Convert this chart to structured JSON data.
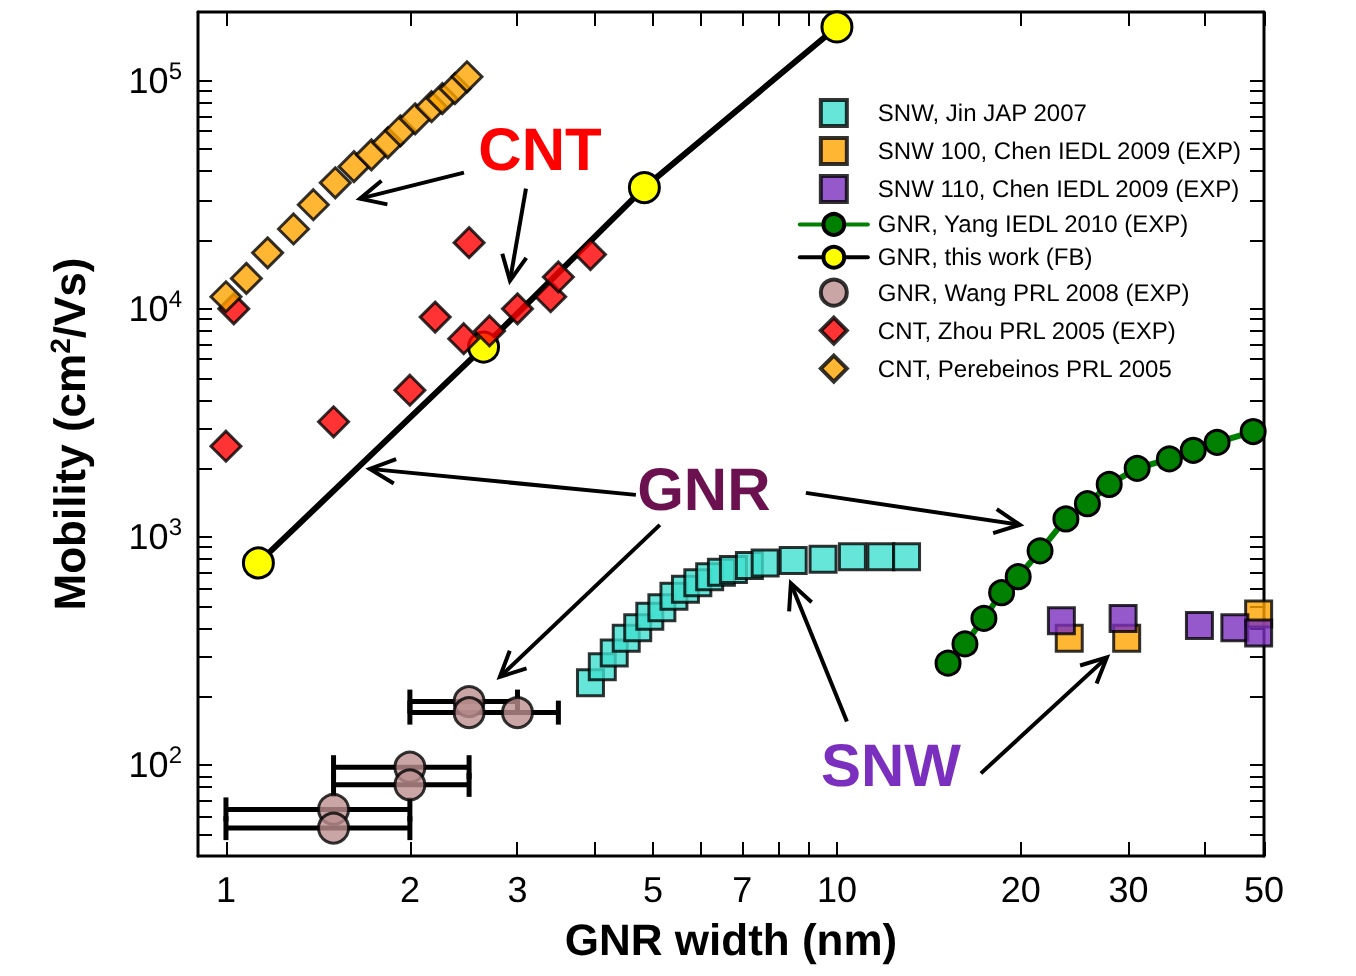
{
  "chart_data": {
    "type": "scatter",
    "xlabel": "GNR width (nm)",
    "ylabel": "Mobility (cm$^{2}$/Vs)",
    "log": "xy",
    "grid": false,
    "legend": "top right",
    "xlim": [
      0.9,
      50
    ],
    "ylim": [
      40,
      200000
    ],
    "xticks": [
      1,
      2,
      3,
      {
        "value": 4,
        "label": null
      },
      5,
      {
        "value": 6,
        "label": null
      },
      7,
      {
        "value": 8,
        "label": null
      },
      {
        "value": 9,
        "label": null
      },
      10,
      20,
      30,
      {
        "value": 40,
        "label": null
      },
      50
    ],
    "yticks": [
      {
        "value": 50,
        "label": null
      },
      {
        "value": 60,
        "label": null
      },
      {
        "value": 70,
        "label": null
      },
      {
        "value": 80,
        "label": null
      },
      {
        "value": 90,
        "label": null
      },
      {
        "value": 100,
        "label": "10$^{2}$"
      },
      {
        "value": 200,
        "label": null
      },
      {
        "value": 300,
        "label": null
      },
      {
        "value": 400,
        "label": null
      },
      {
        "value": 500,
        "label": null
      },
      {
        "value": 600,
        "label": null
      },
      {
        "value": 700,
        "label": null
      },
      {
        "value": 800,
        "label": null
      },
      {
        "value": 900,
        "label": null
      },
      {
        "value": 1000,
        "label": "10$^{3}$"
      },
      {
        "value": 2000,
        "label": null
      },
      {
        "value": 3000,
        "label": null
      },
      {
        "value": 4000,
        "label": null
      },
      {
        "value": 5000,
        "label": null
      },
      {
        "value": 6000,
        "label": null
      },
      {
        "value": 7000,
        "label": null
      },
      {
        "value": 8000,
        "label": null
      },
      {
        "value": 9000,
        "label": null
      },
      {
        "value": 10000,
        "label": "10$^{4}$"
      },
      {
        "value": 20000,
        "label": null
      },
      {
        "value": 30000,
        "label": null
      },
      {
        "value": 40000,
        "label": null
      },
      {
        "value": 50000,
        "label": null
      },
      {
        "value": 60000,
        "label": null
      },
      {
        "value": 70000,
        "label": null
      },
      {
        "value": 80000,
        "label": null
      },
      {
        "value": 90000,
        "label": null
      },
      {
        "value": 100000,
        "label": "10$^{5}$"
      }
    ],
    "series": [
      {
        "name": "SNW, Jin JAP 2007",
        "color": "#40e0d0",
        "marker": "square",
        "x": [
          3.95,
          4.13,
          4.32,
          4.52,
          4.72,
          4.94,
          5.17,
          5.41,
          5.65,
          5.92,
          6.19,
          6.47,
          6.77,
          7.19,
          7.63,
          8.48,
          9.49,
          10.6,
          11.8,
          13.0
        ],
        "values": [
          230,
          270,
          310,
          360,
          400,
          450,
          490,
          550,
          590,
          630,
          670,
          700,
          720,
          750,
          770,
          790,
          800,
          820,
          820,
          820
        ]
      },
      {
        "name": "SNW 100, Chen IEDL 2009 (EXP)",
        "color": "#ffa500",
        "marker": "square",
        "x": [
          24,
          29.8,
          49
        ],
        "values": [
          360,
          360,
          460
        ]
      },
      {
        "name": "SNW 110, Chen IEDL 2009 (EXP)",
        "color": "#7b2fbe",
        "marker": "square",
        "x": [
          23.3,
          29.4,
          39.2,
          44.8,
          49
        ],
        "values": [
          430,
          440,
          410,
          400,
          380
        ]
      },
      {
        "name": "GNR, Yang IEDL 2010 (EXP)",
        "type": "line",
        "color": "#008000",
        "marker": "circle",
        "x": [
          15.2,
          16.2,
          17.4,
          18.6,
          19.8,
          21.5,
          23.7,
          25.7,
          27.9,
          31.0,
          35.0,
          38.3,
          41.9,
          48.0
        ],
        "values": [
          280,
          340,
          440,
          570,
          670,
          870,
          1200,
          1400,
          1700,
          2000,
          2200,
          2400,
          2600,
          2900
        ]
      },
      {
        "name": "GNR, this work (FB)",
        "type": "line",
        "color": "#ffff00",
        "marker": "circle",
        "x": [
          1.13,
          2.64,
          4.84,
          10
        ],
        "values": [
          770,
          6800,
          34000,
          172000
        ]
      },
      {
        "name": "GNR, Wang PRL 2008 (EXP)",
        "color": "#bc8f8f",
        "marker": "circle",
        "x": [
          1.5,
          1.5,
          2,
          2,
          2.5,
          2.5,
          3
        ],
        "values": [
          64,
          53,
          98,
          82,
          190,
          170,
          170
        ],
        "xerrors": [
          [
            1,
            2
          ],
          [
            1,
            2
          ],
          [
            1.5,
            2.5
          ],
          [
            1.5,
            2.5
          ],
          [
            2,
            3
          ],
          null,
          [
            2,
            3.5
          ]
        ]
      },
      {
        "name": "CNT, Zhou PRL 2005 (EXP)",
        "color": "#ff0000",
        "marker": "diamond",
        "x": [
          1,
          1.03,
          1.5,
          2,
          2.2,
          2.5,
          2.45,
          2.7,
          3,
          3.4,
          3.5,
          3.95
        ],
        "values": [
          2500,
          10000,
          3200,
          4400,
          9200,
          19500,
          7400,
          8000,
          10000,
          11300,
          13800,
          17300
        ]
      },
      {
        "name": "CNT, Perebeinos PRL 2005",
        "color": "#ffa500",
        "marker": "diamond",
        "x": [
          1,
          1.08,
          1.17,
          1.29,
          1.39,
          1.51,
          1.62,
          1.73,
          1.84,
          1.93,
          2.04,
          2.17,
          2.26,
          2.37,
          2.48
        ],
        "values": [
          11300,
          13600,
          17600,
          22400,
          28600,
          35700,
          42000,
          47300,
          53400,
          60300,
          68100,
          76900,
          83400,
          92300,
          104000
        ]
      }
    ],
    "annotations": [
      {
        "text": "CNT",
        "x": 1.62,
        "y": 42000
      },
      {
        "text": "GNR",
        "x": 1.72,
        "y": 2030
      },
      "SNW"
    ]
  }
}
